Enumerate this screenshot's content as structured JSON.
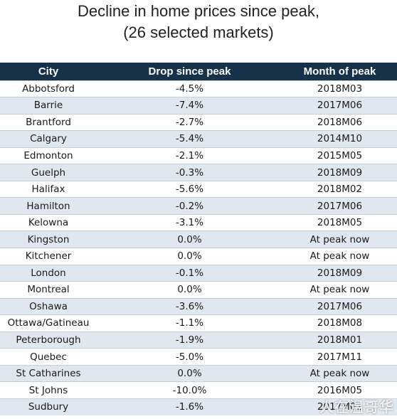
{
  "title": {
    "line1": "Decline in home prices since peak,",
    "line2": "(26 selected markets)"
  },
  "table": {
    "columns": [
      "City",
      "Drop since peak",
      "Month of peak"
    ],
    "rows": [
      {
        "city": "Abbotsford",
        "drop": "-4.5%",
        "month": "2018M03"
      },
      {
        "city": "Barrie",
        "drop": "-7.4%",
        "month": "2017M06"
      },
      {
        "city": "Brantford",
        "drop": "-2.7%",
        "month": "2018M06"
      },
      {
        "city": "Calgary",
        "drop": "-5.4%",
        "month": "2014M10"
      },
      {
        "city": "Edmonton",
        "drop": "-2.1%",
        "month": "2015M05"
      },
      {
        "city": "Guelph",
        "drop": "-0.3%",
        "month": "2018M09"
      },
      {
        "city": "Halifax",
        "drop": "-5.6%",
        "month": "2018M02"
      },
      {
        "city": "Hamilton",
        "drop": "-0.2%",
        "month": "2017M06"
      },
      {
        "city": "Kelowna",
        "drop": "-3.1%",
        "month": "2018M05"
      },
      {
        "city": "Kingston",
        "drop": "0.0%",
        "month": "At peak now"
      },
      {
        "city": "Kitchener",
        "drop": "0.0%",
        "month": "At peak now"
      },
      {
        "city": "London",
        "drop": "-0.1%",
        "month": "2018M09"
      },
      {
        "city": "Montreal",
        "drop": "0.0%",
        "month": "At peak now"
      },
      {
        "city": "Oshawa",
        "drop": "-3.6%",
        "month": "2017M06"
      },
      {
        "city": "Ottawa/Gatineau",
        "drop": "-1.1%",
        "month": "2018M08"
      },
      {
        "city": "Peterborough",
        "drop": "-1.9%",
        "month": "2018M01"
      },
      {
        "city": "Quebec",
        "drop": "-5.0%",
        "month": "2017M11"
      },
      {
        "city": "St Catharines",
        "drop": "0.0%",
        "month": "At peak now"
      },
      {
        "city": "St Johns",
        "drop": "-10.0%",
        "month": "2016M05"
      },
      {
        "city": "Sudbury",
        "drop": "-1.6%",
        "month": "2017M02"
      }
    ]
  },
  "watermark": "人在温哥华"
}
